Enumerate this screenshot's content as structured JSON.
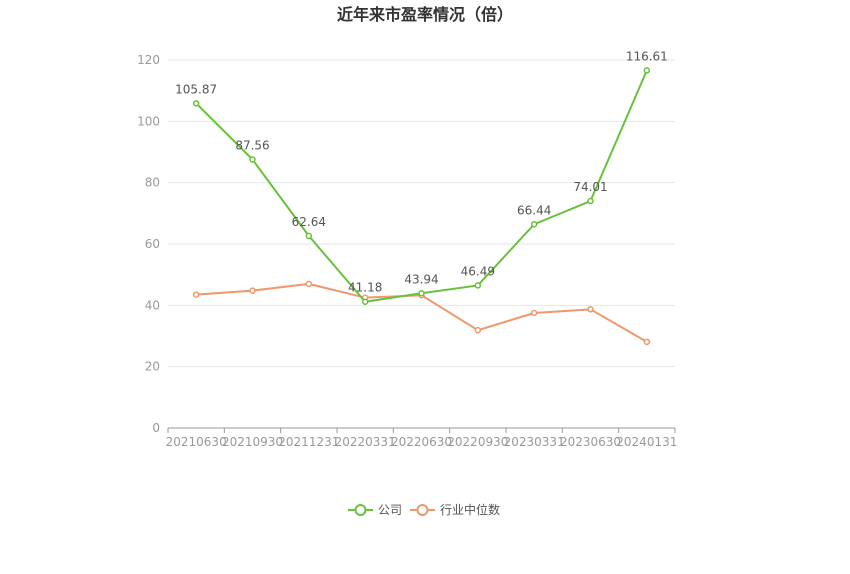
{
  "chart_data": {
    "type": "line",
    "title": "近年来市盈率情况（倍）",
    "categories": [
      "20210630",
      "20210930",
      "20211231",
      "20220331",
      "20220630",
      "20220930",
      "20230331",
      "20230630",
      "20240131"
    ],
    "series": [
      {
        "name": "公司",
        "color": "#67c23a",
        "values": [
          105.87,
          87.56,
          62.64,
          41.18,
          43.94,
          46.49,
          66.44,
          74.01,
          116.61
        ],
        "show_labels": true
      },
      {
        "name": "行业中位数",
        "color": "#f0976b",
        "values": [
          43.5,
          44.8,
          47.0,
          42.5,
          43.3,
          31.9,
          37.5,
          38.7,
          28.1
        ],
        "show_labels": false
      }
    ],
    "ylim": [
      0,
      120
    ],
    "yticks": [
      0,
      20,
      40,
      60,
      80,
      100,
      120
    ],
    "xlabel": "",
    "ylabel": "",
    "grid": true,
    "legend": "bottom-center"
  }
}
